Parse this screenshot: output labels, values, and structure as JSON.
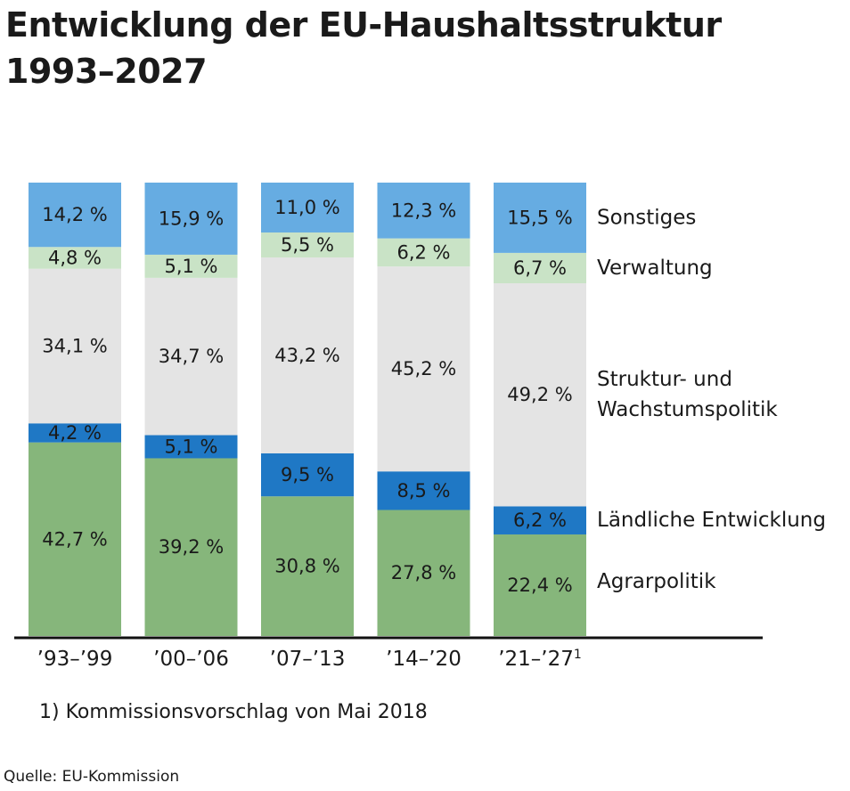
{
  "title_lines": [
    "Entwicklung der EU-Haushaltsstruktur",
    "1993–2027"
  ],
  "footnote": "1) Kommissionsvorschlag von Mai 2018",
  "source": "Quelle: EU-Kommission",
  "chart_data": {
    "type": "bar",
    "stacked": true,
    "categories": [
      "’93–’99",
      "’00–’06",
      "’07–’13",
      "’14–’20",
      "’21–’27"
    ],
    "category_superscripts": [
      "",
      "",
      "",
      "",
      "1"
    ],
    "series": [
      {
        "name": "Agrarpolitik",
        "color": "#86b67b",
        "values": [
          42.7,
          39.2,
          30.8,
          27.8,
          22.4
        ],
        "labels": [
          "42,7 %",
          "39,2 %",
          "30,8 %",
          "27,8 %",
          "22,4 %"
        ]
      },
      {
        "name": "Ländliche Entwicklung",
        "color": "#1f78c5",
        "values": [
          4.2,
          5.1,
          9.5,
          8.5,
          6.2
        ],
        "labels": [
          "4,2 %",
          "5,1 %",
          "9,5 %",
          "8,5 %",
          "6,2 %"
        ]
      },
      {
        "name": "Struktur- und Wachstumspolitik",
        "legend_lines": [
          "Struktur- und",
          "Wachstumspolitik"
        ],
        "color": "#e4e4e4",
        "values": [
          34.1,
          34.7,
          43.2,
          45.2,
          49.2
        ],
        "labels": [
          "34,1 %",
          "34,7 %",
          "43,2 %",
          "45,2 %",
          "49,2 %"
        ]
      },
      {
        "name": "Verwaltung",
        "color": "#c9e3c6",
        "values": [
          4.8,
          5.1,
          5.5,
          6.2,
          6.7
        ],
        "labels": [
          "4,8 %",
          "5,1 %",
          "5,5 %",
          "6,2 %",
          "6,7 %"
        ]
      },
      {
        "name": "Sonstiges",
        "color": "#66ace2",
        "values": [
          14.2,
          15.9,
          11.0,
          12.3,
          15.5
        ],
        "labels": [
          "14,2 %",
          "15,9 %",
          "11,0 %",
          "12,3 %",
          "15,5 %"
        ]
      }
    ],
    "ylim": [
      0,
      100
    ],
    "legend_position": "right",
    "grid": false
  }
}
